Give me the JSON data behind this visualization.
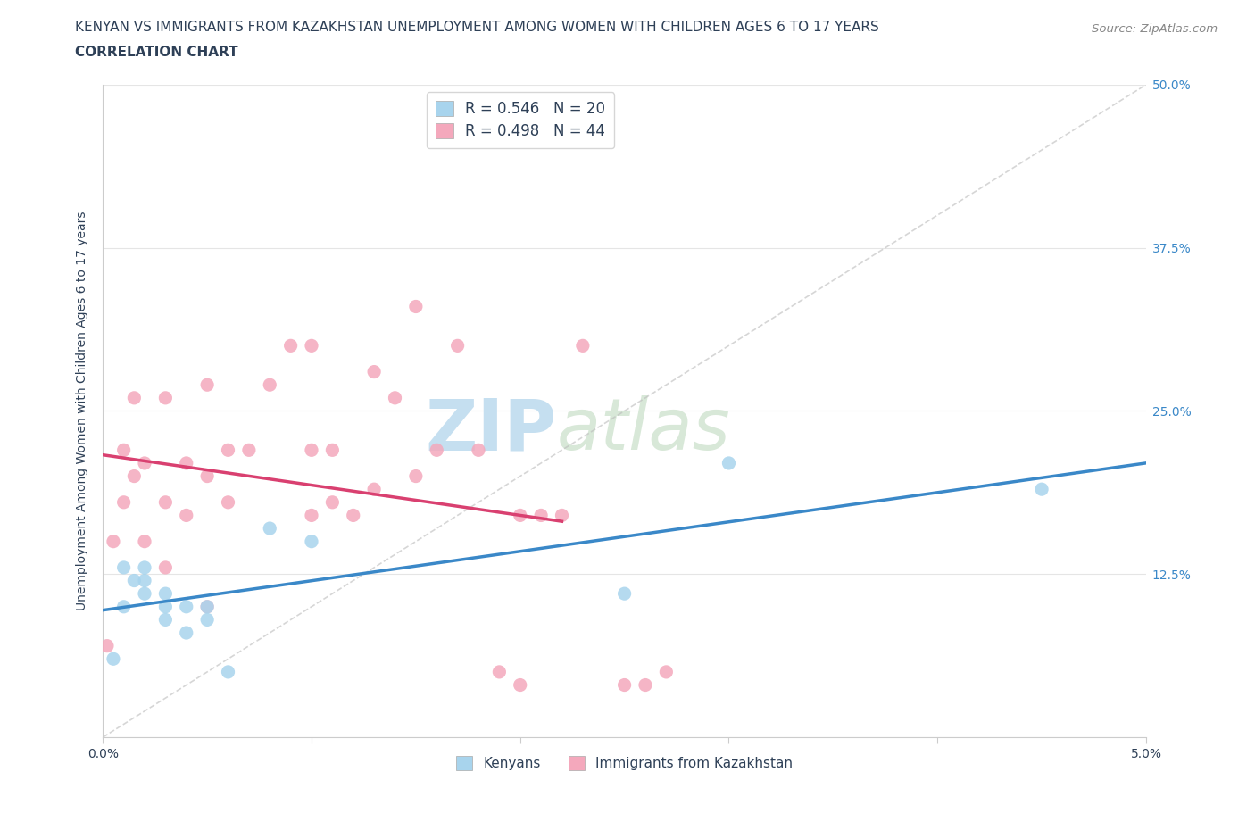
{
  "title_line1": "KENYAN VS IMMIGRANTS FROM KAZAKHSTAN UNEMPLOYMENT AMONG WOMEN WITH CHILDREN AGES 6 TO 17 YEARS",
  "title_line2": "CORRELATION CHART",
  "source": "Source: ZipAtlas.com",
  "ylabel": "Unemployment Among Women with Children Ages 6 to 17 years",
  "xlim": [
    0.0,
    0.05
  ],
  "ylim": [
    0.0,
    0.5
  ],
  "xticks": [
    0.0,
    0.01,
    0.02,
    0.03,
    0.04,
    0.05
  ],
  "xtick_labels": [
    "0.0%",
    "",
    "",
    "",
    "",
    "5.0%"
  ],
  "yticks": [
    0.0,
    0.125,
    0.25,
    0.375,
    0.5
  ],
  "ytick_labels_left": [
    "",
    "",
    "",
    "",
    ""
  ],
  "ytick_labels_right": [
    "",
    "12.5%",
    "25.0%",
    "37.5%",
    "50.0%"
  ],
  "title_color": "#2e4057",
  "title_fontsize": 11,
  "subtitle_fontsize": 11,
  "kenyan_color": "#a8d4ed",
  "kazakh_color": "#f4a8bc",
  "kenyan_line_color": "#3a88c8",
  "kazakh_line_color": "#d94070",
  "kenyan_R": 0.546,
  "kenyan_N": 20,
  "kazakh_R": 0.498,
  "kazakh_N": 44,
  "legend_text_color": "#2e4057",
  "legend_N_color": "#3a88c8",
  "watermark_zip": "ZIP",
  "watermark_atlas": "atlas",
  "watermark_color": "#c5dff0",
  "kenyan_x": [
    0.0005,
    0.001,
    0.001,
    0.0015,
    0.002,
    0.002,
    0.002,
    0.003,
    0.003,
    0.003,
    0.004,
    0.004,
    0.005,
    0.005,
    0.006,
    0.008,
    0.01,
    0.025,
    0.03,
    0.045
  ],
  "kenyan_y": [
    0.06,
    0.1,
    0.13,
    0.12,
    0.11,
    0.12,
    0.13,
    0.1,
    0.09,
    0.11,
    0.1,
    0.08,
    0.1,
    0.09,
    0.05,
    0.16,
    0.15,
    0.11,
    0.21,
    0.19
  ],
  "kazakh_x": [
    0.0002,
    0.0005,
    0.001,
    0.001,
    0.0015,
    0.0015,
    0.002,
    0.002,
    0.003,
    0.003,
    0.003,
    0.004,
    0.004,
    0.005,
    0.005,
    0.005,
    0.006,
    0.006,
    0.007,
    0.008,
    0.009,
    0.01,
    0.01,
    0.01,
    0.011,
    0.011,
    0.012,
    0.013,
    0.013,
    0.014,
    0.015,
    0.015,
    0.016,
    0.017,
    0.018,
    0.019,
    0.02,
    0.02,
    0.021,
    0.022,
    0.023,
    0.025,
    0.026,
    0.027
  ],
  "kazakh_y": [
    0.07,
    0.15,
    0.18,
    0.22,
    0.2,
    0.26,
    0.15,
    0.21,
    0.13,
    0.18,
    0.26,
    0.17,
    0.21,
    0.1,
    0.2,
    0.27,
    0.18,
    0.22,
    0.22,
    0.27,
    0.3,
    0.17,
    0.22,
    0.3,
    0.18,
    0.22,
    0.17,
    0.19,
    0.28,
    0.26,
    0.33,
    0.2,
    0.22,
    0.3,
    0.22,
    0.05,
    0.04,
    0.17,
    0.17,
    0.17,
    0.3,
    0.04,
    0.04,
    0.05
  ],
  "axis_color": "#cccccc",
  "tick_color": "#2e4057",
  "right_tick_color": "#3a88c8",
  "grid_color": "#e5e5e5",
  "background_color": "#ffffff"
}
